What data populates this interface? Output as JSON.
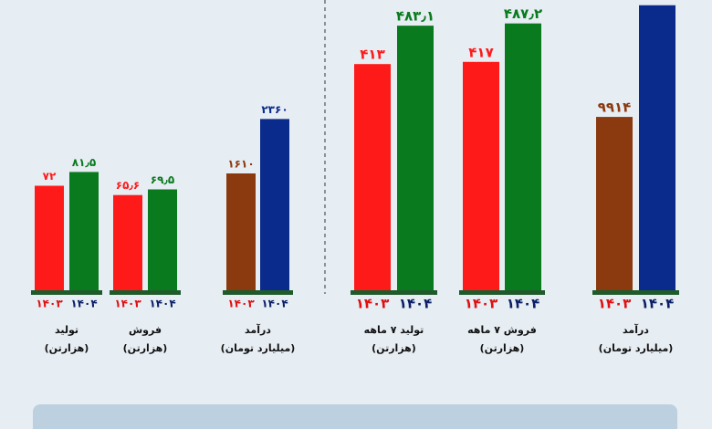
{
  "chart_data": {
    "type": "bar",
    "groups": [
      {
        "name": "تولید",
        "unit": "(هزارتن)",
        "categories": [
          "۱۴۰۳",
          "۱۴۰۴"
        ],
        "values": [
          72,
          81.5
        ],
        "value_labels": [
          "۷۲",
          "۸۱٫۵"
        ],
        "colors": [
          "#ff1a1a",
          "#0a7a1e"
        ],
        "ylim": [
          0,
          200
        ]
      },
      {
        "name": "فروش",
        "unit": "(هزارتن)",
        "categories": [
          "۱۴۰۳",
          "۱۴۰۴"
        ],
        "values": [
          65.6,
          69.5
        ],
        "value_labels": [
          "۶۵٫۶",
          "۶۹٫۵"
        ],
        "colors": [
          "#ff1a1a",
          "#0a7a1e"
        ],
        "ylim": [
          0,
          200
        ]
      },
      {
        "name": "درآمد",
        "unit": "(میلیارد تومان)",
        "categories": [
          "۱۴۰۳",
          "۱۴۰۴"
        ],
        "values": [
          1610,
          2360
        ],
        "value_labels": [
          "۱۶۱۰",
          "۲۳۶۰"
        ],
        "colors": [
          "#8b3a0f",
          "#0a2a8c"
        ],
        "ylim": [
          0,
          4000
        ]
      },
      {
        "name": "تولید ۷ ماهه",
        "unit": "(هزارتن)",
        "categories": [
          "۱۴۰۳",
          "۱۴۰۴"
        ],
        "values": [
          413,
          483.1
        ],
        "value_labels": [
          "۴۱۳",
          "۴۸۳٫۱"
        ],
        "colors": [
          "#ff1a1a",
          "#0a7a1e"
        ],
        "ylim": [
          0,
          530
        ]
      },
      {
        "name": "فروش ۷ ماهه",
        "unit": "(هزارتن)",
        "categories": [
          "۱۴۰۳",
          "۱۴۰۴"
        ],
        "values": [
          417,
          487.2
        ],
        "value_labels": [
          "۴۱۷",
          "۴۸۷٫۲"
        ],
        "colors": [
          "#ff1a1a",
          "#0a7a1e"
        ],
        "ylim": [
          0,
          530
        ]
      },
      {
        "name": "درآمد",
        "unit": "(میلیارد تومان)",
        "categories": [
          "۱۴۰۳",
          "۱۴۰۴"
        ],
        "values": [
          9914,
          16300
        ],
        "value_labels": [
          "۹۹۱۴",
          null
        ],
        "colors": [
          "#8b3a0f",
          "#0a2a8c"
        ],
        "ylim": [
          0,
          16600
        ]
      }
    ],
    "category_colors": [
      "#e01010",
      "#0a1f66"
    ]
  }
}
